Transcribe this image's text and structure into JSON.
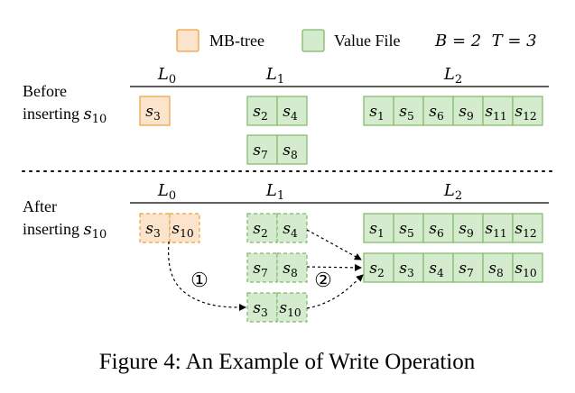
{
  "legend": {
    "mbtree_label": "MB-tree",
    "value_file_label": "Value File",
    "params": "B = 2  T = 3",
    "mbtree_color": "#fce4cc",
    "mbtree_border": "#e8a33c",
    "value_color": "#d5ebcd",
    "value_border": "#7fb86a"
  },
  "levels": [
    "L0",
    "L1",
    "L2"
  ],
  "before": {
    "label_line1": "Before",
    "label_line2": "inserting",
    "inserted_key": "s10",
    "L0": [
      "s3"
    ],
    "L1_files": [
      [
        "s2",
        "s4"
      ],
      [
        "s7",
        "s8"
      ]
    ],
    "L2_files": [
      [
        "s1",
        "s5",
        "s6",
        "s9",
        "s11",
        "s12"
      ]
    ]
  },
  "after": {
    "label_line1": "After",
    "label_line2": "inserting",
    "inserted_key": "s10",
    "L0": [
      "s3",
      "s10"
    ],
    "L1_files": [
      [
        "s2",
        "s4"
      ],
      [
        "s7",
        "s8"
      ],
      [
        "s3",
        "s10"
      ]
    ],
    "L2_files": [
      [
        "s1",
        "s5",
        "s6",
        "s9",
        "s11",
        "s12"
      ],
      [
        "s2",
        "s3",
        "s4",
        "s7",
        "s8",
        "s10"
      ]
    ]
  },
  "steps": [
    "①",
    "②"
  ],
  "caption": "Figure 4: An Example of Write Operation"
}
